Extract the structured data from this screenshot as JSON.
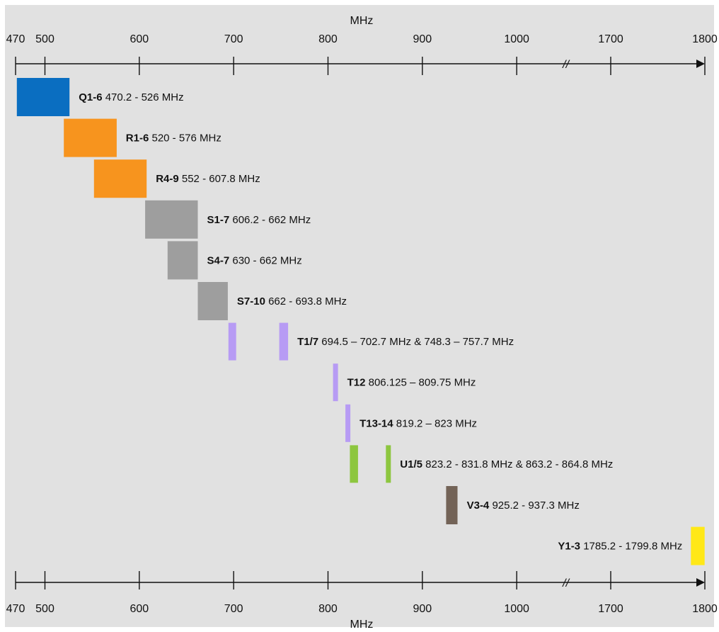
{
  "chart_data": {
    "type": "bar",
    "subtype": "frequency-range-timeline",
    "axis_unit": "MHz",
    "axis_break": "//",
    "grid": false,
    "background_color": "#e1e1e1",
    "ticks": [
      {
        "value": 470,
        "label": "470"
      },
      {
        "value": 500,
        "label": "500"
      },
      {
        "value": 600,
        "label": "600"
      },
      {
        "value": 700,
        "label": "700"
      },
      {
        "value": 800,
        "label": "800"
      },
      {
        "value": 900,
        "label": "900"
      },
      {
        "value": 1000,
        "label": "1000"
      },
      {
        "value": 1700,
        "label": "1700"
      },
      {
        "value": 1800,
        "label": "1800"
      }
    ],
    "bands": [
      {
        "name": "Q1-6",
        "range_text": "470.2 - 526 MHz",
        "color": "#0a6ec1",
        "segments": [
          [
            470.2,
            526
          ]
        ]
      },
      {
        "name": "R1-6",
        "range_text": "520 - 576 MHz",
        "color": "#f7941e",
        "segments": [
          [
            520,
            576
          ]
        ]
      },
      {
        "name": "R4-9",
        "range_text": "552 - 607.8 MHz",
        "color": "#f7941e",
        "segments": [
          [
            552,
            607.8
          ]
        ]
      },
      {
        "name": "S1-7",
        "range_text": "606.2 - 662 MHz",
        "color": "#9e9e9e",
        "segments": [
          [
            606.2,
            662
          ]
        ]
      },
      {
        "name": "S4-7",
        "range_text": "630 - 662 MHz",
        "color": "#9e9e9e",
        "segments": [
          [
            630,
            662
          ]
        ]
      },
      {
        "name": "S7-10",
        "range_text": "662 - 693.8 MHz",
        "color": "#9e9e9e",
        "segments": [
          [
            662,
            693.8
          ]
        ]
      },
      {
        "name": "T1/7",
        "range_text": "694.5 – 702.7 MHz & 748.3 – 757.7 MHz",
        "color": "#b79bf4",
        "segments": [
          [
            694.5,
            702.7
          ],
          [
            748.3,
            757.7
          ]
        ]
      },
      {
        "name": "T12",
        "range_text": "806.125 – 809.75 MHz",
        "color": "#b79bf4",
        "segments": [
          [
            806.125,
            809.75
          ]
        ]
      },
      {
        "name": "T13-14",
        "range_text": "819.2 – 823 MHz",
        "color": "#b79bf4",
        "segments": [
          [
            819.2,
            823
          ]
        ]
      },
      {
        "name": "U1/5",
        "range_text": "823.2 - 831.8 MHz & 863.2 - 864.8 MHz",
        "color": "#8dc63f",
        "segments": [
          [
            823.2,
            831.8
          ],
          [
            863.2,
            864.8
          ]
        ]
      },
      {
        "name": "V3-4",
        "range_text": "925.2 - 937.3 MHz",
        "color": "#736357",
        "segments": [
          [
            925.2,
            937.3
          ]
        ]
      },
      {
        "name": "Y1-3",
        "range_text": "1785.2 - 1799.8 MHz",
        "color": "#ffe817",
        "segments": [
          [
            1785.2,
            1799.8
          ]
        ]
      }
    ]
  }
}
